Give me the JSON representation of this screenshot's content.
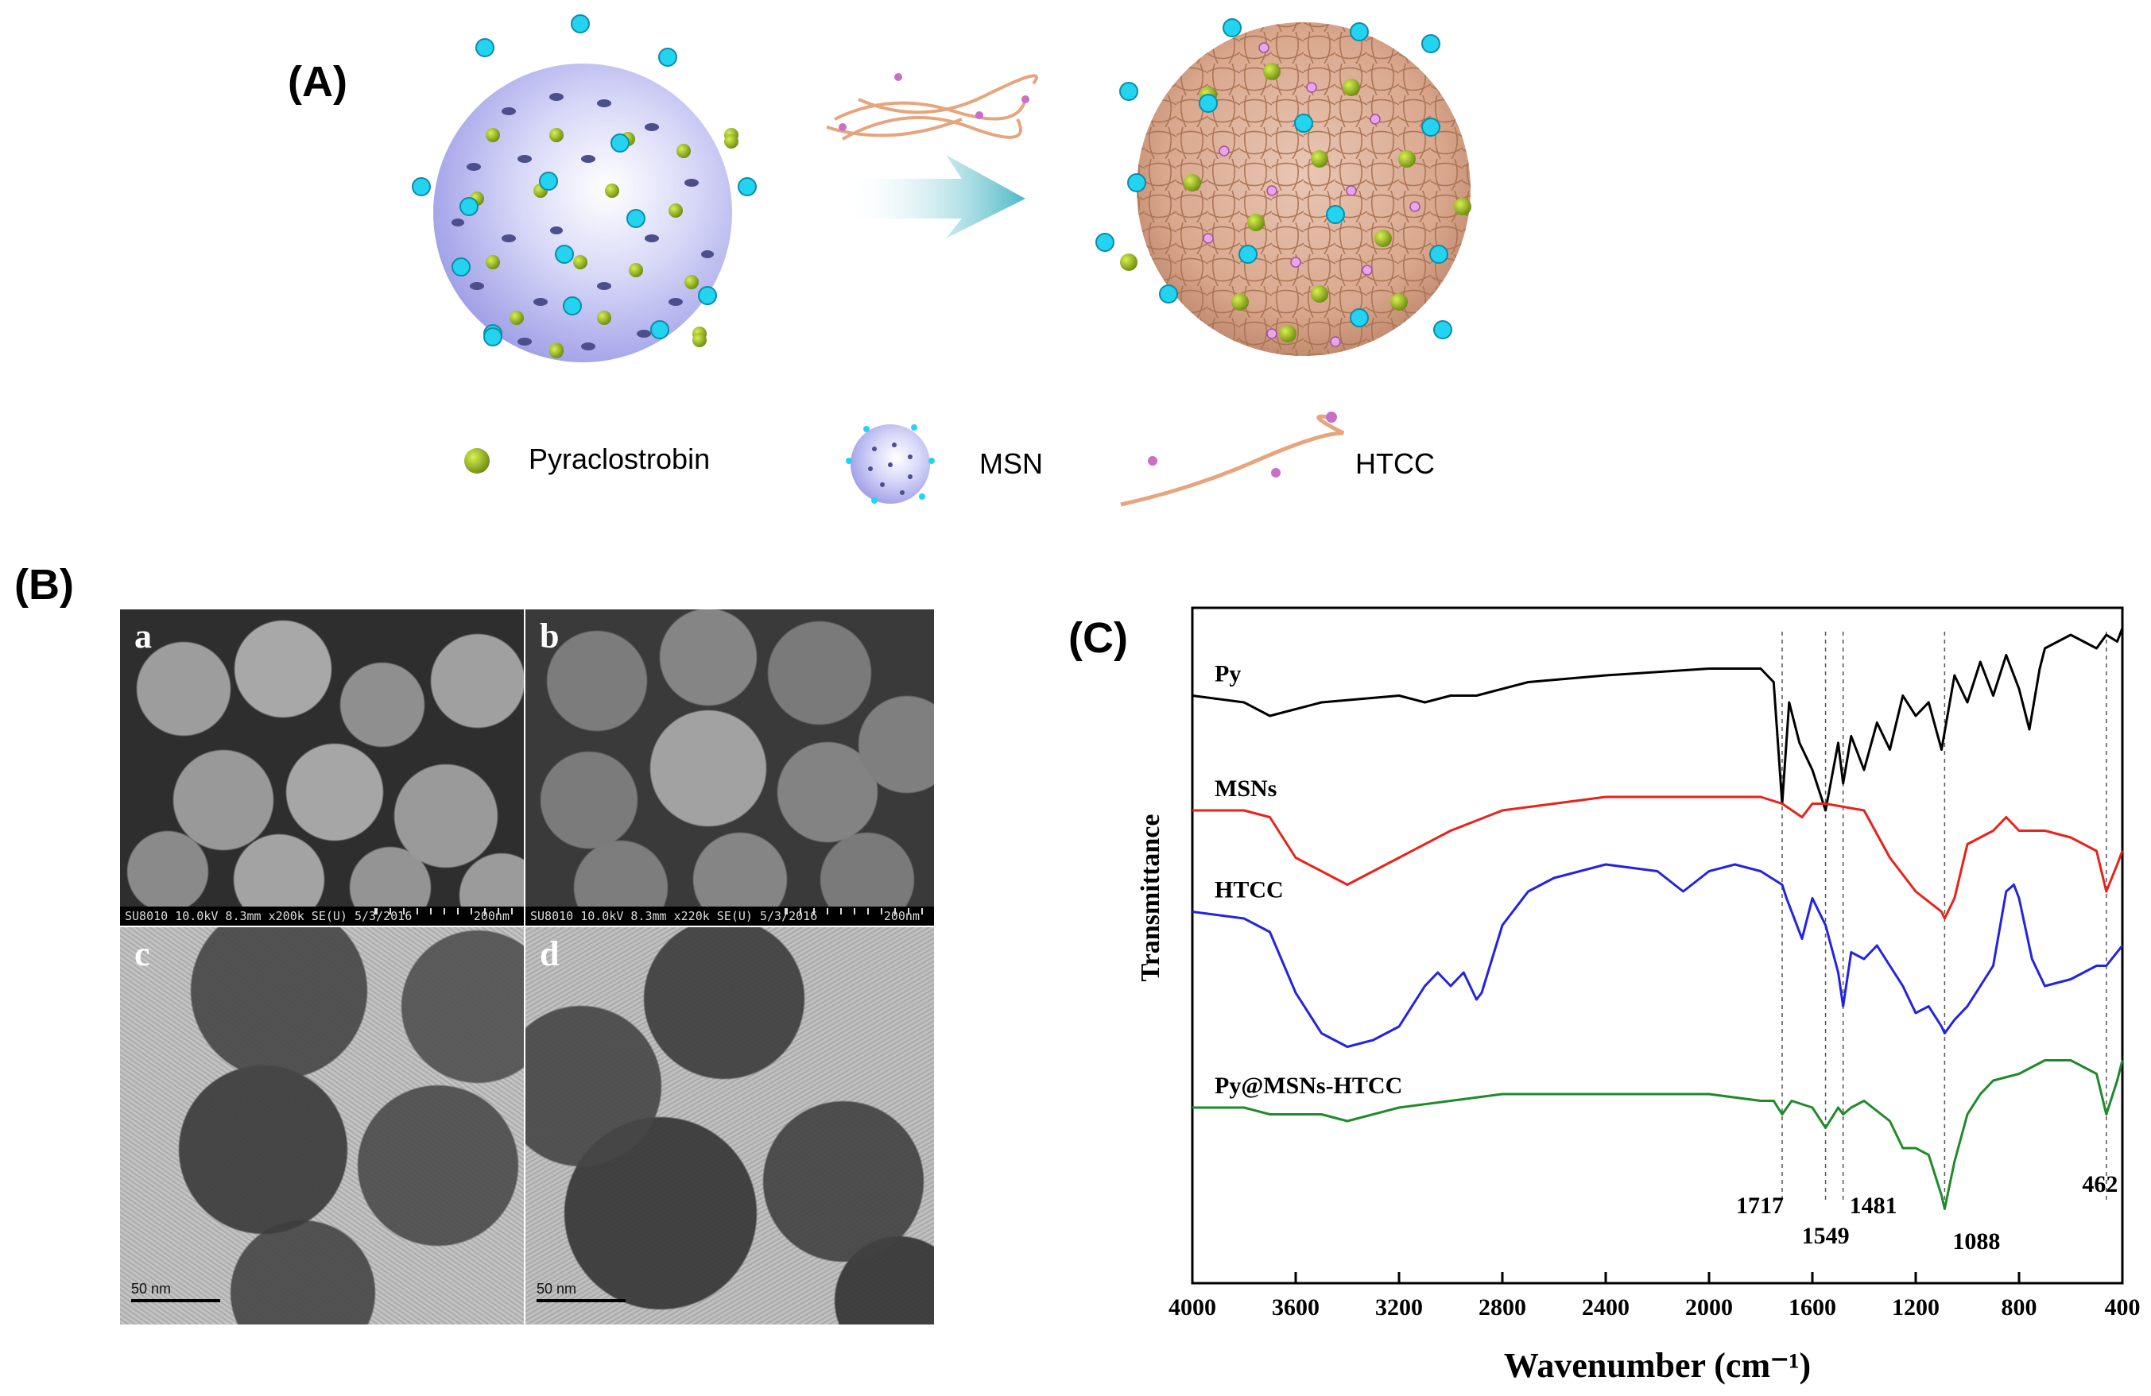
{
  "panels": {
    "a_label": "(A)",
    "b_label": "(B)",
    "c_label": "(C)"
  },
  "legend_a": {
    "pyraclostrobin": "Pyraclostrobin",
    "msn": "MSN",
    "htcc": "HTCC"
  },
  "micrographs": {
    "a": {
      "letter": "a",
      "info": "SU8010 10.0kV 8.3mm x200k SE(U) 5/3/2016",
      "scale": "200nm"
    },
    "b": {
      "letter": "b",
      "info": "SU8010 10.0kV 8.3mm x220k SE(U) 5/3/2016",
      "scale": "200nm"
    },
    "c": {
      "letter": "c",
      "scale": "50 nm"
    },
    "d": {
      "letter": "d",
      "scale": "50 nm"
    }
  },
  "chart_data": {
    "type": "line",
    "xlabel": "Wavenumber (cm⁻¹)",
    "ylabel": "Transmittance",
    "xlim": [
      4000,
      400
    ],
    "x_ticks": [
      "4000",
      "3600",
      "3200",
      "2800",
      "2400",
      "2000",
      "1600",
      "1200",
      "800",
      "400"
    ],
    "series": [
      {
        "name": "Py",
        "color": "#000000",
        "x": [
          4000,
          3800,
          3700,
          3500,
          3200,
          3100,
          3000,
          2900,
          2700,
          2400,
          2000,
          1800,
          1750,
          1717,
          1690,
          1650,
          1600,
          1549,
          1500,
          1481,
          1450,
          1400,
          1350,
          1300,
          1250,
          1200,
          1150,
          1100,
          1050,
          1000,
          950,
          900,
          850,
          800,
          760,
          720,
          700,
          600,
          500,
          462,
          420,
          400
        ],
        "y": [
          0.87,
          0.86,
          0.84,
          0.86,
          0.87,
          0.86,
          0.87,
          0.87,
          0.89,
          0.9,
          0.91,
          0.91,
          0.89,
          0.71,
          0.86,
          0.8,
          0.76,
          0.7,
          0.8,
          0.74,
          0.81,
          0.76,
          0.83,
          0.79,
          0.87,
          0.84,
          0.86,
          0.79,
          0.9,
          0.86,
          0.92,
          0.87,
          0.93,
          0.88,
          0.82,
          0.91,
          0.94,
          0.96,
          0.94,
          0.96,
          0.95,
          0.97
        ]
      },
      {
        "name": "MSNs",
        "color": "#e8221b",
        "x": [
          4000,
          3800,
          3700,
          3600,
          3400,
          3200,
          3000,
          2800,
          2400,
          2000,
          1800,
          1717,
          1640,
          1600,
          1549,
          1400,
          1300,
          1200,
          1100,
          1088,
          1050,
          1000,
          950,
          900,
          850,
          800,
          700,
          600,
          500,
          462,
          420,
          400
        ],
        "y": [
          0.7,
          0.7,
          0.69,
          0.63,
          0.59,
          0.63,
          0.67,
          0.7,
          0.72,
          0.72,
          0.72,
          0.71,
          0.69,
          0.71,
          0.71,
          0.7,
          0.63,
          0.58,
          0.55,
          0.54,
          0.57,
          0.65,
          0.66,
          0.67,
          0.69,
          0.67,
          0.67,
          0.66,
          0.64,
          0.58,
          0.62,
          0.64
        ]
      },
      {
        "name": "HTCC",
        "color": "#2323e0",
        "x": [
          4000,
          3800,
          3700,
          3600,
          3500,
          3400,
          3300,
          3200,
          3100,
          3050,
          3000,
          2950,
          2900,
          2880,
          2800,
          2700,
          2600,
          2400,
          2200,
          2100,
          2000,
          1900,
          1800,
          1717,
          1700,
          1640,
          1600,
          1549,
          1500,
          1481,
          1450,
          1400,
          1350,
          1300,
          1250,
          1200,
          1150,
          1100,
          1088,
          1050,
          1000,
          950,
          900,
          850,
          820,
          800,
          750,
          700,
          600,
          500,
          462,
          400
        ],
        "y": [
          0.55,
          0.54,
          0.52,
          0.43,
          0.37,
          0.35,
          0.36,
          0.38,
          0.44,
          0.46,
          0.44,
          0.46,
          0.42,
          0.43,
          0.53,
          0.58,
          0.6,
          0.62,
          0.61,
          0.58,
          0.61,
          0.62,
          0.61,
          0.59,
          0.57,
          0.51,
          0.57,
          0.53,
          0.46,
          0.41,
          0.49,
          0.48,
          0.5,
          0.47,
          0.44,
          0.4,
          0.41,
          0.38,
          0.37,
          0.39,
          0.41,
          0.44,
          0.47,
          0.58,
          0.59,
          0.57,
          0.48,
          0.44,
          0.45,
          0.47,
          0.47,
          0.5
        ]
      },
      {
        "name": "Py@MSNs-HTCC",
        "color": "#1f8a2a",
        "x": [
          4000,
          3800,
          3700,
          3600,
          3500,
          3400,
          3200,
          3000,
          2800,
          2400,
          2000,
          1800,
          1750,
          1717,
          1680,
          1600,
          1549,
          1500,
          1481,
          1450,
          1400,
          1300,
          1250,
          1200,
          1150,
          1100,
          1088,
          1050,
          1000,
          950,
          900,
          800,
          700,
          600,
          500,
          462,
          420,
          400
        ],
        "y": [
          0.26,
          0.26,
          0.25,
          0.25,
          0.25,
          0.24,
          0.26,
          0.27,
          0.28,
          0.28,
          0.28,
          0.27,
          0.27,
          0.25,
          0.27,
          0.26,
          0.23,
          0.26,
          0.25,
          0.26,
          0.27,
          0.24,
          0.2,
          0.2,
          0.19,
          0.13,
          0.11,
          0.18,
          0.25,
          0.28,
          0.3,
          0.31,
          0.33,
          0.33,
          0.31,
          0.25,
          0.3,
          0.33
        ]
      }
    ],
    "reference_lines": [
      1717,
      1549,
      1481,
      1088,
      462
    ],
    "annotations": [
      "1717",
      "1549",
      "1481",
      "1088",
      "462"
    ]
  }
}
